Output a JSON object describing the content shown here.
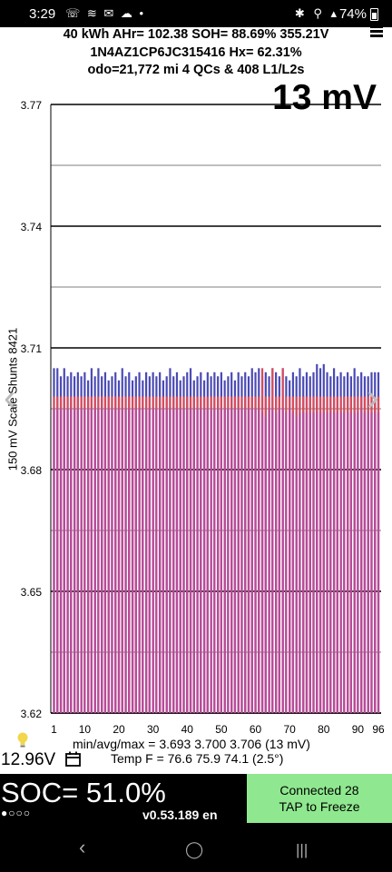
{
  "status_bar": {
    "time": "3:29",
    "left_icons": "☏ ≋ ✉ ☁ •",
    "right_icons": "✱ ⚲ ▴",
    "battery": "74%"
  },
  "header": {
    "line1": "40 kWh  AHr= 102.38  SOH= 88.69%  355.21V",
    "line2": "1N4AZ1CP6JC315416  Hx= 62.31%",
    "line3": "odo=21,772 mi 4 QCs & 408 L1/L2s"
  },
  "spread_label": "13 mV",
  "chart_data": {
    "type": "bar",
    "ylabel": "150 mV Scale Shunts 8421",
    "ylim": [
      3.62,
      3.77
    ],
    "y_ticks": [
      "3.77",
      "3.74",
      "3.71",
      "3.68",
      "3.65",
      "3.62"
    ],
    "x_ticks": [
      "1",
      "10",
      "20",
      "30",
      "40",
      "50",
      "60",
      "70",
      "80",
      "90",
      "96"
    ],
    "grid": true,
    "series": [
      {
        "color": "#4a4ab5",
        "values": [
          3.705,
          3.705,
          3.703,
          3.705,
          3.703,
          3.704,
          3.703,
          3.704,
          3.703,
          3.704,
          3.702,
          3.705,
          3.703,
          3.705,
          3.703,
          3.704,
          3.702,
          3.703,
          3.704,
          3.702,
          3.705,
          3.703,
          3.704,
          3.702,
          3.703,
          3.704,
          3.702,
          3.704,
          3.703,
          3.704,
          3.703,
          3.704,
          3.702,
          3.703,
          3.705,
          3.703,
          3.704,
          3.702,
          3.703,
          3.704,
          3.705,
          3.702,
          3.703,
          3.704,
          3.702,
          3.704,
          3.703,
          3.704,
          3.703,
          3.704,
          3.702,
          3.703,
          3.704,
          3.702,
          3.704,
          3.703,
          3.704,
          3.703,
          3.705,
          3.704,
          3.705,
          3.703,
          3.704,
          3.703,
          3.705,
          3.704,
          3.703,
          3.705,
          3.703,
          3.702,
          3.704,
          3.703,
          3.705,
          3.703,
          3.704,
          3.703,
          3.704,
          3.706,
          3.705,
          3.706,
          3.704,
          3.703,
          3.705,
          3.703,
          3.704,
          3.703,
          3.704,
          3.703,
          3.705,
          3.703,
          3.704,
          3.703,
          3.703,
          3.704,
          3.704,
          3.704
        ]
      },
      {
        "color": "#d84a5a",
        "values": [
          3.698,
          3.698,
          3.698,
          3.698,
          3.698,
          3.698,
          3.698,
          3.698,
          3.698,
          3.698,
          3.698,
          3.698,
          3.698,
          3.698,
          3.698,
          3.698,
          3.698,
          3.698,
          3.698,
          3.698,
          3.698,
          3.698,
          3.698,
          3.698,
          3.698,
          3.698,
          3.698,
          3.698,
          3.698,
          3.698,
          3.698,
          3.698,
          3.698,
          3.698,
          3.698,
          3.698,
          3.698,
          3.698,
          3.698,
          3.698,
          3.698,
          3.698,
          3.698,
          3.698,
          3.698,
          3.698,
          3.698,
          3.698,
          3.698,
          3.698,
          3.698,
          3.698,
          3.698,
          3.698,
          3.698,
          3.698,
          3.698,
          3.698,
          3.698,
          3.698,
          3.698,
          3.705,
          3.698,
          3.698,
          3.705,
          3.698,
          3.698,
          3.705,
          3.698,
          3.698,
          3.698,
          3.698,
          3.698,
          3.698,
          3.698,
          3.698,
          3.698,
          3.698,
          3.698,
          3.698,
          3.698,
          3.698,
          3.698,
          3.698,
          3.698,
          3.698,
          3.698,
          3.698,
          3.698,
          3.698,
          3.698,
          3.698,
          3.698,
          3.698,
          3.698,
          3.698
        ]
      },
      {
        "color": "#b84a9a",
        "values": [
          3.695,
          3.695,
          3.695,
          3.695,
          3.695,
          3.695,
          3.695,
          3.695,
          3.695,
          3.695,
          3.695,
          3.695,
          3.695,
          3.695,
          3.695,
          3.695,
          3.695,
          3.695,
          3.695,
          3.695,
          3.695,
          3.695,
          3.695,
          3.695,
          3.695,
          3.695,
          3.695,
          3.695,
          3.695,
          3.695,
          3.695,
          3.695,
          3.695,
          3.695,
          3.695,
          3.695,
          3.695,
          3.695,
          3.695,
          3.695,
          3.695,
          3.695,
          3.695,
          3.695,
          3.695,
          3.695,
          3.695,
          3.695,
          3.695,
          3.695,
          3.695,
          3.695,
          3.695,
          3.695,
          3.695,
          3.695,
          3.695,
          3.695,
          3.695,
          3.695,
          3.695,
          3.694,
          3.693,
          3.695,
          3.695,
          3.694,
          3.695,
          3.695,
          3.694,
          3.695,
          3.694,
          3.693,
          3.694,
          3.694,
          3.694,
          3.694,
          3.694,
          3.694,
          3.694,
          3.694,
          3.694,
          3.694,
          3.694,
          3.694,
          3.694,
          3.694,
          3.694,
          3.694,
          3.694,
          3.694,
          3.695,
          3.694,
          3.694,
          3.694,
          3.694,
          3.694
        ]
      }
    ]
  },
  "stats": {
    "minavgmax": "min/avg/max = 3.693 3.700 3.706  (13 mV)",
    "temp": "Temp F = 76.6  75.9  74.1  (2.5°)",
    "pack_voltage": "12.96V"
  },
  "bottom": {
    "soc": "SOC= 51.0%",
    "dots": "●○○○",
    "version": "v0.53.189 en",
    "button_line1": "Connected 28",
    "button_line2": "TAP to Freeze"
  },
  "nav": {
    "back": "‹",
    "home": "◯",
    "recents": "|||"
  },
  "colors": {
    "series_blue": "#4a4ab5",
    "series_red": "#d84a5a",
    "series_magenta": "#b84a9a",
    "button_green": "#8fe88f"
  }
}
